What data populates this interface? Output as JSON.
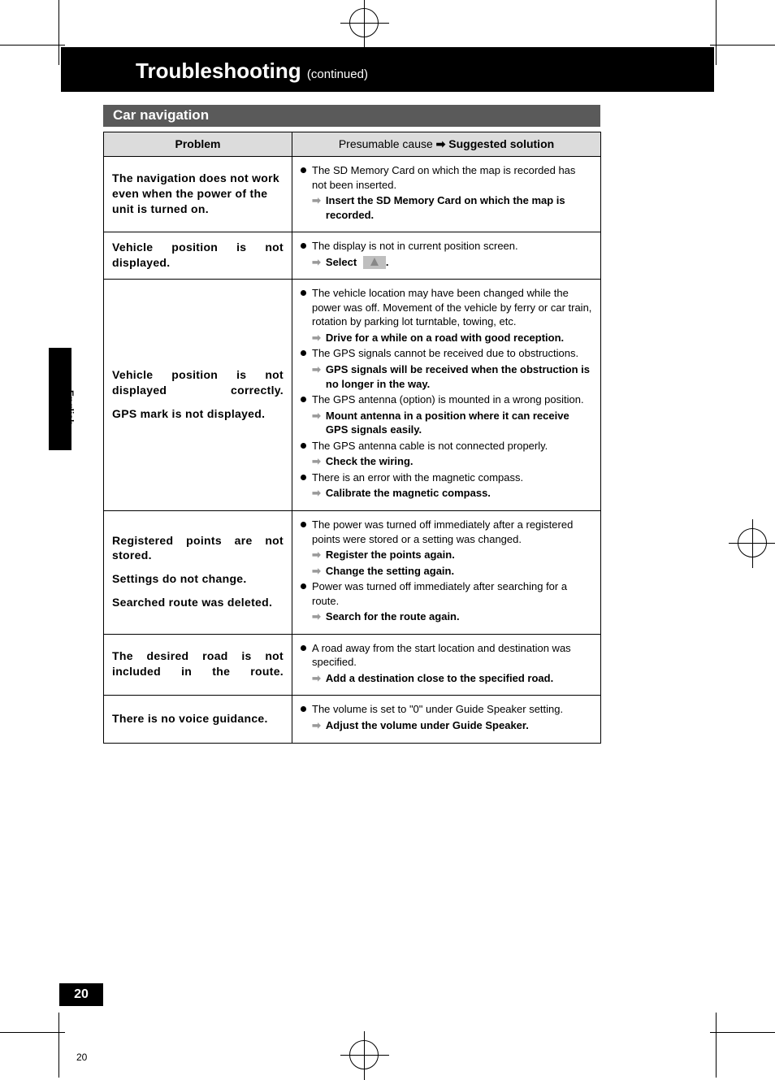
{
  "header": {
    "title": "Troubleshooting",
    "continued": "(continued)"
  },
  "section": {
    "label": "Car navigation"
  },
  "table": {
    "head": {
      "problem": "Problem",
      "cause_prefix": "Presumable cause",
      "cause_arrow": "➡",
      "cause_suffix": "Suggested solution"
    },
    "rows": [
      {
        "problem": "The navigation does not work even when the power of the unit is turned on.",
        "problem_justify": false,
        "items": [
          {
            "cause": "The SD Memory Card on which the map is recorded has not been inserted.",
            "solutions": [
              "Insert the SD Memory Card on which the map is recorded."
            ]
          }
        ]
      },
      {
        "problem": "Vehicle position is not displayed.",
        "problem_justify": true,
        "items": [
          {
            "cause": "The display is not in current position screen.",
            "solutions_select_icon": true,
            "solutions": [
              "Select "
            ]
          }
        ]
      },
      {
        "problem_lines": [
          "Vehicle position is not displayed correctly.",
          "GPS mark is not displayed."
        ],
        "problem_justify_first": true,
        "items": [
          {
            "cause": "The vehicle location may have been changed while the power was off. Movement of the vehicle by ferry or car train, rotation by parking lot turntable, towing, etc.",
            "solutions": [
              "Drive for a while on a road with good reception."
            ]
          },
          {
            "cause": "The GPS signals cannot be received due to obstructions.",
            "solutions": [
              "GPS signals will be received when the obstruction is no longer in the way."
            ]
          },
          {
            "cause": "The GPS antenna (option) is mounted in a wrong position.",
            "solutions": [
              "Mount antenna in a position where it can receive GPS signals easily."
            ]
          },
          {
            "cause": "The GPS antenna cable is not connected properly.",
            "solutions": [
              "Check the wiring."
            ]
          },
          {
            "cause": "There is an error with the magnetic compass.",
            "solutions": [
              "Calibrate the magnetic compass."
            ]
          }
        ]
      },
      {
        "problem_lines": [
          "Registered points are not stored.",
          "Settings do not change.",
          "Searched route was deleted."
        ],
        "problem_justify_first": true,
        "items": [
          {
            "cause": "The power was turned off immediately after a registered points were stored or a setting was changed.",
            "solutions": [
              "Register the points again.",
              "Change the setting again."
            ]
          },
          {
            "cause": "Power was turned off immediately after searching for a route.",
            "solutions": [
              "Search for the route again."
            ]
          }
        ]
      },
      {
        "problem": "The desired road is not included in the route.",
        "problem_justify": true,
        "items": [
          {
            "cause": "A road away from the start location and destination was specified.",
            "solutions": [
              "Add a destination close to the specified road."
            ]
          }
        ]
      },
      {
        "problem": "There is no voice guidance.",
        "problem_justify": false,
        "items": [
          {
            "cause": "The volume is set to \"0\" under Guide Speaker setting.",
            "solutions": [
              "Adjust the volume under Guide Speaker."
            ]
          }
        ]
      }
    ]
  },
  "side": {
    "language": "English"
  },
  "page_number": {
    "tab": "20",
    "crop": "20"
  },
  "colors": {
    "header_bg": "#000000",
    "section_bg": "#5a5a5a",
    "th_bg": "#dcdcdc",
    "arrow": "#9a9a9a"
  }
}
